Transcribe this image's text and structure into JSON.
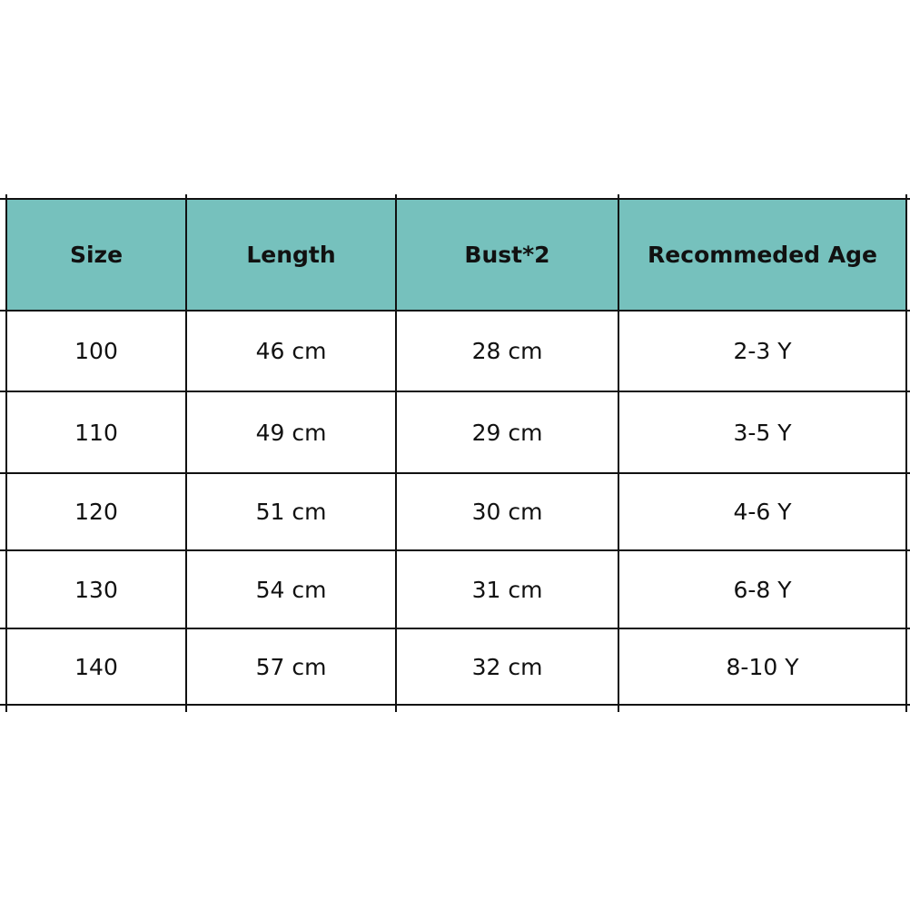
{
  "table": {
    "header_color": "#76c1bd",
    "columns": [
      "Size",
      "Length",
      "Bust*2",
      "Recommeded Age"
    ],
    "rows": [
      [
        "100",
        "46 cm",
        "28 cm",
        "2-3 Y"
      ],
      [
        "110",
        "49 cm",
        "29 cm",
        "3-5 Y"
      ],
      [
        "120",
        "51 cm",
        "30 cm",
        "4-6 Y"
      ],
      [
        "130",
        "54 cm",
        "31 cm",
        "6-8 Y"
      ],
      [
        "140",
        "57 cm",
        "32 cm",
        "8-10 Y"
      ]
    ]
  }
}
